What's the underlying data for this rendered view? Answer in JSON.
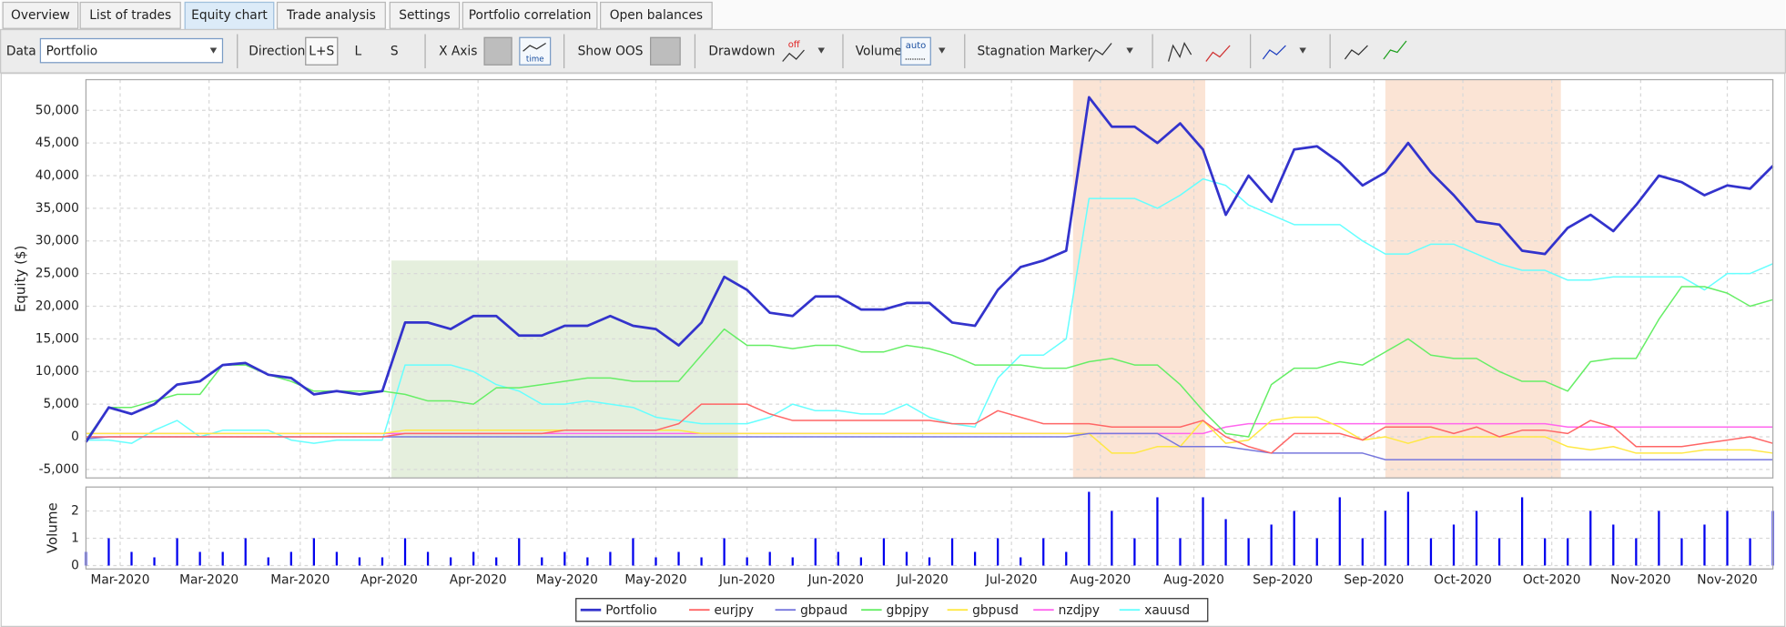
{
  "tabs": [
    "Overview",
    "List of trades",
    "Equity chart",
    "Trade analysis",
    "Settings",
    "Portfolio correlation",
    "Open balances"
  ],
  "toolbar": {
    "data_label": "Data",
    "data_value": "Portfolio",
    "direction_label": "Direction",
    "direction_options": [
      "L+S",
      "L",
      "S"
    ],
    "x_axis_label": "X Axis",
    "x_axis_icon": "time",
    "show_oos_label": "Show OOS",
    "drawdown_label": "Drawdown",
    "drawdown_icon": "off",
    "volume_label": "Volume",
    "volume_icon": "auto",
    "stagnation_marker_label": "Stagnation Marker"
  },
  "chart_data": [
    {
      "type": "line",
      "ylabel": "Equity ($)",
      "xlim": [
        0,
        74
      ],
      "ylim": [
        -6300,
        54700
      ],
      "yticks": [
        {
          "value": -5000,
          "label": "-5,000"
        },
        0,
        {
          "value": 5000,
          "label": "5,000"
        },
        {
          "value": 10000,
          "label": "10,000"
        },
        {
          "value": 15000,
          "label": "15,000"
        },
        {
          "value": 20000,
          "label": "20,000"
        },
        {
          "value": 25000,
          "label": "25,000"
        },
        {
          "value": 30000,
          "label": "30,000"
        },
        {
          "value": 35000,
          "label": "35,000"
        },
        {
          "value": 40000,
          "label": "40,000"
        },
        {
          "value": 45000,
          "label": "45,000"
        },
        {
          "value": 50000,
          "label": "50,000"
        }
      ],
      "grid": true,
      "highlights": [
        {
          "xlim": [
            13.4,
            28.6
          ],
          "ylim": [
            -6300,
            27000
          ],
          "color": "#e5efdd"
        },
        {
          "xlim": [
            43.3,
            49.1
          ],
          "ylim": [
            -6300,
            54700
          ],
          "color": "#fbe4d5"
        },
        {
          "xlim": [
            57.0,
            64.7
          ],
          "ylim": [
            -6300,
            54700
          ],
          "color": "#fbe4d5"
        }
      ],
      "series": [
        {
          "name": "Portfolio",
          "color": "#3333cc",
          "values": [
            -800,
            4500,
            3500,
            5000,
            8000,
            8500,
            11000,
            11300,
            9500,
            9000,
            6500,
            7000,
            6500,
            7000,
            17500,
            17500,
            16500,
            18500,
            18500,
            15500,
            15500,
            17000,
            17000,
            18500,
            17000,
            16500,
            14000,
            17500,
            24500,
            22500,
            19000,
            18500,
            21500,
            21500,
            19500,
            19500,
            20500,
            20500,
            17500,
            17000,
            22500,
            26000,
            27000,
            28500,
            52000,
            47500,
            47500,
            45000,
            48000,
            44000,
            34000,
            40000,
            36000,
            44000,
            44500,
            42000,
            38500,
            40500,
            45000,
            40500,
            37000,
            33000,
            32500,
            28500,
            28000,
            32000,
            34000,
            31500,
            35500,
            40000,
            39000,
            37000,
            38500,
            38000,
            41500
          ]
        },
        {
          "name": "eurjpy",
          "color": "#ff6666",
          "values": [
            0,
            0,
            0,
            0,
            0,
            0,
            0,
            0,
            0,
            0,
            0,
            0,
            0,
            0,
            500,
            500,
            500,
            500,
            500,
            500,
            500,
            1000,
            1000,
            1000,
            1000,
            1000,
            2000,
            5000,
            5000,
            5000,
            3500,
            2500,
            2500,
            2500,
            2500,
            2500,
            2500,
            2500,
            2000,
            2000,
            4000,
            3000,
            2000,
            2000,
            2000,
            1500,
            1500,
            1500,
            1500,
            2500,
            0,
            -1500,
            -2500,
            500,
            500,
            500,
            -500,
            1500,
            1500,
            1500,
            500,
            1500,
            0,
            1000,
            1000,
            500,
            2500,
            1500,
            -1500,
            -1500,
            -1500,
            -1000,
            -500,
            0,
            -1000
          ]
        },
        {
          "name": "gbpaud",
          "color": "#7777dd",
          "values": [
            -300,
            0,
            0,
            0,
            0,
            0,
            0,
            0,
            0,
            0,
            0,
            0,
            0,
            0,
            0,
            0,
            0,
            0,
            0,
            0,
            0,
            0,
            0,
            0,
            0,
            0,
            0,
            0,
            0,
            0,
            0,
            0,
            0,
            0,
            0,
            0,
            0,
            0,
            0,
            0,
            0,
            0,
            0,
            0,
            500,
            500,
            500,
            500,
            -1500,
            -1500,
            -1500,
            -2000,
            -2500,
            -2500,
            -2500,
            -2500,
            -2500,
            -3500,
            -3500,
            -3500,
            -3500,
            -3500,
            -3500,
            -3500,
            -3500,
            -3500,
            -3500,
            -3500,
            -3500,
            -3500,
            -3500,
            -3500,
            -3500,
            -3500,
            -3500
          ]
        },
        {
          "name": "gbpjpy",
          "color": "#66ee66",
          "values": [
            -500,
            4500,
            4500,
            5500,
            6500,
            6500,
            11000,
            11000,
            9500,
            8500,
            7000,
            7000,
            7000,
            7000,
            6500,
            5500,
            5500,
            5000,
            7500,
            7500,
            8000,
            8500,
            9000,
            9000,
            8500,
            8500,
            8500,
            12500,
            16500,
            14000,
            14000,
            13500,
            14000,
            14000,
            13000,
            13000,
            14000,
            13500,
            12500,
            11000,
            11000,
            11000,
            10500,
            10500,
            11500,
            12000,
            11000,
            11000,
            8000,
            4000,
            500,
            0,
            8000,
            10500,
            10500,
            11500,
            11000,
            13000,
            15000,
            12500,
            12000,
            12000,
            10000,
            8500,
            8500,
            7000,
            11500,
            12000,
            12000,
            18000,
            23000,
            23000,
            22000,
            20000,
            21000
          ]
        },
        {
          "name": "gbpusd",
          "color": "#ffe844",
          "values": [
            500,
            500,
            500,
            500,
            500,
            500,
            500,
            500,
            500,
            500,
            500,
            500,
            500,
            500,
            1000,
            1000,
            1000,
            1000,
            1000,
            1000,
            1000,
            1000,
            1000,
            1000,
            1000,
            1000,
            1000,
            500,
            500,
            500,
            500,
            500,
            500,
            500,
            500,
            500,
            500,
            500,
            500,
            500,
            500,
            500,
            500,
            500,
            500,
            -2500,
            -2500,
            -1500,
            -1500,
            2500,
            -1000,
            -500,
            2500,
            3000,
            3000,
            1500,
            -500,
            0,
            -1000,
            0,
            0,
            0,
            0,
            0,
            0,
            -1500,
            -2000,
            -1500,
            -2500,
            -2500,
            -2500,
            -2000,
            -2000,
            -2000,
            -2500
          ]
        },
        {
          "name": "nzdjpy",
          "color": "#ff66ee",
          "values": [
            500,
            500,
            500,
            500,
            500,
            500,
            500,
            500,
            500,
            500,
            500,
            500,
            500,
            500,
            500,
            500,
            500,
            500,
            500,
            500,
            500,
            500,
            500,
            500,
            500,
            500,
            500,
            500,
            500,
            500,
            500,
            500,
            500,
            500,
            500,
            500,
            500,
            500,
            500,
            500,
            500,
            500,
            500,
            500,
            500,
            500,
            500,
            500,
            500,
            500,
            1500,
            2000,
            2000,
            2000,
            2000,
            2000,
            2000,
            2000,
            2000,
            2000,
            2000,
            2000,
            2000,
            2000,
            2000,
            1500,
            1500,
            1500,
            1500,
            1500,
            1500,
            1500,
            1500,
            1500,
            1500
          ]
        },
        {
          "name": "xauusd",
          "color": "#66ffff",
          "values": [
            -500,
            -500,
            -1000,
            1000,
            2500,
            0,
            1000,
            1000,
            1000,
            -500,
            -1000,
            -500,
            -500,
            -500,
            11000,
            11000,
            11000,
            10000,
            8000,
            7000,
            5000,
            5000,
            5500,
            5000,
            4500,
            3000,
            2500,
            2000,
            2000,
            2000,
            3000,
            5000,
            4000,
            4000,
            3500,
            3500,
            5000,
            3000,
            2000,
            1500,
            9000,
            12500,
            12500,
            15000,
            36500,
            36500,
            36500,
            35000,
            37000,
            39500,
            38500,
            35500,
            34000,
            32500,
            32500,
            32500,
            30000,
            28000,
            28000,
            29500,
            29500,
            28000,
            26500,
            25500,
            25500,
            24000,
            24000,
            24500,
            24500,
            24500,
            24500,
            22500,
            25000,
            25000,
            26500
          ]
        }
      ]
    },
    {
      "type": "bar",
      "ylabel": "Volume",
      "color": "#0000ee",
      "xlim": [
        0,
        74
      ],
      "ylim": [
        -0.125,
        2.875
      ],
      "yticks": [
        0,
        1,
        2
      ],
      "grid": true,
      "xticks": [
        {
          "value": 1.5,
          "label": "Mar-2020"
        },
        {
          "value": 5.4,
          "label": "Mar-2020"
        },
        {
          "value": 9.4,
          "label": "Mar-2020"
        },
        {
          "value": 13.3,
          "label": "Apr-2020"
        },
        {
          "value": 17.2,
          "label": "Apr-2020"
        },
        {
          "value": 21.1,
          "label": "May-2020"
        },
        {
          "value": 25.0,
          "label": "May-2020"
        },
        {
          "value": 29.0,
          "label": "Jun-2020"
        },
        {
          "value": 32.9,
          "label": "Jun-2020"
        },
        {
          "value": 36.7,
          "label": "Jul-2020"
        },
        {
          "value": 40.6,
          "label": "Jul-2020"
        },
        {
          "value": 44.5,
          "label": "Aug-2020"
        },
        {
          "value": 48.6,
          "label": "Aug-2020"
        },
        {
          "value": 52.5,
          "label": "Sep-2020"
        },
        {
          "value": 56.5,
          "label": "Sep-2020"
        },
        {
          "value": 60.4,
          "label": "Oct-2020"
        },
        {
          "value": 64.3,
          "label": "Oct-2020"
        },
        {
          "value": 68.2,
          "label": "Nov-2020"
        },
        {
          "value": 72.0,
          "label": "Nov-2020"
        }
      ],
      "values": [
        0.5,
        1,
        0.5,
        0.3,
        1,
        0.5,
        0.5,
        1,
        0.3,
        0.5,
        1,
        0.5,
        0.3,
        0.3,
        1,
        0.5,
        0.3,
        0.5,
        0.3,
        1,
        0.3,
        0.5,
        0.3,
        0.5,
        1,
        0.3,
        0.5,
        0.3,
        1,
        0.3,
        0.5,
        0.3,
        1,
        0.5,
        0.3,
        1,
        0.5,
        0.3,
        1,
        0.5,
        1,
        0.3,
        1,
        0.5,
        2.7,
        2,
        1,
        2.5,
        1,
        2.5,
        1.7,
        1,
        1.5,
        2,
        1,
        2.5,
        1,
        2,
        2.7,
        1,
        1.5,
        2,
        1,
        2.5,
        1,
        1,
        2,
        1.5,
        1,
        2,
        1,
        1.5,
        2,
        1,
        2
      ]
    }
  ]
}
